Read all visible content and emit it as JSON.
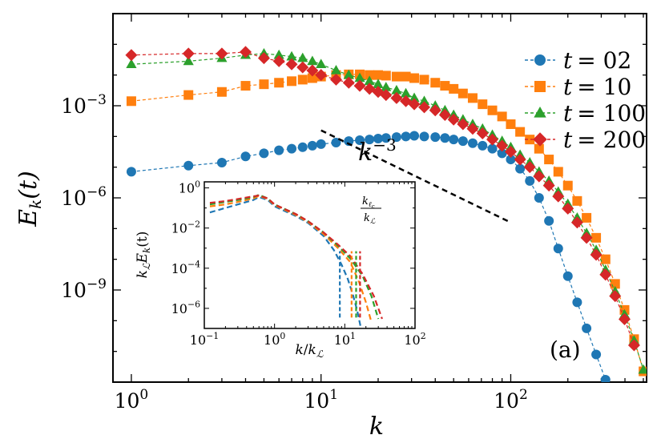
{
  "chart_data": {
    "type": "line",
    "title": "",
    "xlabel": "k",
    "ylabel": "E_k(t)",
    "xscale": "log",
    "yscale": "log",
    "xlim": [
      0.8,
      520
    ],
    "ylim": [
      1e-12,
      1
    ],
    "x_ticks": [
      {
        "value": 1,
        "base": "10",
        "exp": "0"
      },
      {
        "value": 10,
        "base": "10",
        "exp": "1"
      },
      {
        "value": 100,
        "base": "10",
        "exp": "2"
      }
    ],
    "y_ticks": [
      {
        "value": 0.001,
        "base": "10",
        "exp": "−3"
      },
      {
        "value": 1e-06,
        "base": "10",
        "exp": "−6"
      },
      {
        "value": 1e-09,
        "base": "10",
        "exp": "−9"
      }
    ],
    "panel_label": "(a)",
    "slope_annotation": {
      "label_base": "k",
      "label_exp": "−3",
      "from": [
        10,
        0.000158
      ],
      "to": [
        100,
        1.58e-07
      ]
    },
    "legend_position": "top-right",
    "series": [
      {
        "name": "t = 02",
        "legend_prefix": "t",
        "legend_value": "= 02",
        "color": "#1f77b4",
        "marker": "circle",
        "points": [
          [
            1,
            7.1e-06
          ],
          [
            2,
            1.12e-05
          ],
          [
            3,
            1.41e-05
          ],
          [
            4,
            2.24e-05
          ],
          [
            5,
            2.82e-05
          ],
          [
            6,
            3.55e-05
          ],
          [
            7,
            3.98e-05
          ],
          [
            8,
            4.47e-05
          ],
          [
            9,
            5.01e-05
          ],
          [
            10,
            5.62e-05
          ],
          [
            12,
            6.31e-05
          ],
          [
            14,
            7.08e-05
          ],
          [
            16,
            7.58e-05
          ],
          [
            18,
            7.94e-05
          ],
          [
            20,
            8.51e-05
          ],
          [
            22,
            8.91e-05
          ],
          [
            25,
            9.55e-05
          ],
          [
            28,
            0.0001
          ],
          [
            31,
            0.000105
          ],
          [
            35,
            0.0001
          ],
          [
            40,
            9.55e-05
          ],
          [
            45,
            8.91e-05
          ],
          [
            50,
            7.94e-05
          ],
          [
            56,
            7.08e-05
          ],
          [
            63,
            6.03e-05
          ],
          [
            71,
            5.01e-05
          ],
          [
            80,
            3.98e-05
          ],
          [
            90,
            2.82e-05
          ],
          [
            100,
            1.78e-05
          ],
          [
            112,
            8.91e-06
          ],
          [
            126,
            3.55e-06
          ],
          [
            141,
            1e-06
          ],
          [
            159,
            1.78e-07
          ],
          [
            178,
            2.24e-08
          ],
          [
            200,
            2.82e-09
          ],
          [
            224,
            3.98e-10
          ],
          [
            251,
            5.62e-11
          ],
          [
            282,
            7.94e-12
          ],
          [
            316,
            1.2e-12
          ]
        ]
      },
      {
        "name": "t = 10",
        "legend_prefix": "t",
        "legend_value": "= 10",
        "color": "#ff7f0e",
        "marker": "square",
        "points": [
          [
            1,
            0.00141
          ],
          [
            2,
            0.00224
          ],
          [
            3,
            0.00282
          ],
          [
            4,
            0.00447
          ],
          [
            5,
            0.00501
          ],
          [
            6,
            0.00562
          ],
          [
            7,
            0.00631
          ],
          [
            8,
            0.00708
          ],
          [
            9,
            0.00794
          ],
          [
            10,
            0.00891
          ],
          [
            12,
            0.01
          ],
          [
            14,
            0.0105
          ],
          [
            16,
            0.0105
          ],
          [
            18,
            0.01
          ],
          [
            20,
            0.01
          ],
          [
            22,
            0.00955
          ],
          [
            25,
            0.00891
          ],
          [
            28,
            0.00891
          ],
          [
            31,
            0.00794
          ],
          [
            35,
            0.00708
          ],
          [
            40,
            0.00562
          ],
          [
            45,
            0.00447
          ],
          [
            50,
            0.00355
          ],
          [
            56,
            0.00251
          ],
          [
            63,
            0.00178
          ],
          [
            71,
            0.00112
          ],
          [
            80,
            0.000708
          ],
          [
            90,
            0.000447
          ],
          [
            100,
            0.000251
          ],
          [
            112,
            0.000141
          ],
          [
            126,
            7.94e-05
          ],
          [
            141,
            3.98e-05
          ],
          [
            159,
            1.78e-05
          ],
          [
            178,
            7.08e-06
          ],
          [
            200,
            2.51e-06
          ],
          [
            224,
            7.94e-07
          ],
          [
            251,
            2.24e-07
          ],
          [
            282,
            5.01e-08
          ],
          [
            316,
            1e-08
          ],
          [
            355,
            1.58e-09
          ],
          [
            398,
            2.24e-10
          ],
          [
            447,
            2.51e-11
          ],
          [
            501,
            2.24e-12
          ]
        ]
      },
      {
        "name": "t = 100",
        "legend_prefix": "t",
        "legend_value": "= 100",
        "color": "#2ca02c",
        "marker": "triangle",
        "points": [
          [
            1,
            0.0224
          ],
          [
            2,
            0.0282
          ],
          [
            3,
            0.0355
          ],
          [
            4,
            0.0447
          ],
          [
            5,
            0.0501
          ],
          [
            6,
            0.0447
          ],
          [
            7,
            0.0398
          ],
          [
            8,
            0.0355
          ],
          [
            9,
            0.0282
          ],
          [
            10,
            0.0224
          ],
          [
            12,
            0.0141
          ],
          [
            14,
            0.01
          ],
          [
            16,
            0.00794
          ],
          [
            18,
            0.00631
          ],
          [
            20,
            0.00501
          ],
          [
            22,
            0.00398
          ],
          [
            25,
            0.00316
          ],
          [
            28,
            0.00251
          ],
          [
            31,
            0.00178
          ],
          [
            35,
            0.00141
          ],
          [
            40,
            0.001
          ],
          [
            45,
            0.000708
          ],
          [
            50,
            0.000501
          ],
          [
            56,
            0.000355
          ],
          [
            63,
            0.000251
          ],
          [
            71,
            0.000178
          ],
          [
            80,
            0.000112
          ],
          [
            90,
            7.08e-05
          ],
          [
            100,
            4.47e-05
          ],
          [
            112,
            2.51e-05
          ],
          [
            126,
            1.41e-05
          ],
          [
            141,
            7.08e-06
          ],
          [
            159,
            3.55e-06
          ],
          [
            178,
            1.58e-06
          ],
          [
            200,
            6.31e-07
          ],
          [
            224,
            2.24e-07
          ],
          [
            251,
            7.08e-08
          ],
          [
            282,
            2e-08
          ],
          [
            316,
            4.47e-09
          ],
          [
            355,
            8.91e-10
          ],
          [
            398,
            1.58e-10
          ],
          [
            447,
            2.24e-11
          ],
          [
            501,
            2.51e-12
          ]
        ]
      },
      {
        "name": "t = 200",
        "legend_prefix": "t",
        "legend_value": "= 200",
        "color": "#d62728",
        "marker": "diamond",
        "points": [
          [
            1,
            0.0447
          ],
          [
            2,
            0.0501
          ],
          [
            3,
            0.0501
          ],
          [
            4,
            0.0562
          ],
          [
            5,
            0.0355
          ],
          [
            6,
            0.0282
          ],
          [
            7,
            0.0224
          ],
          [
            8,
            0.0178
          ],
          [
            9,
            0.0141
          ],
          [
            10,
            0.01
          ],
          [
            12,
            0.00708
          ],
          [
            14,
            0.00562
          ],
          [
            16,
            0.00447
          ],
          [
            18,
            0.00355
          ],
          [
            20,
            0.00282
          ],
          [
            22,
            0.00224
          ],
          [
            25,
            0.00178
          ],
          [
            28,
            0.00141
          ],
          [
            31,
            0.00112
          ],
          [
            35,
            0.000891
          ],
          [
            40,
            0.000708
          ],
          [
            45,
            0.000501
          ],
          [
            50,
            0.000355
          ],
          [
            56,
            0.000251
          ],
          [
            63,
            0.000178
          ],
          [
            71,
            0.000126
          ],
          [
            80,
            7.94e-05
          ],
          [
            90,
            5.01e-05
          ],
          [
            100,
            3.16e-05
          ],
          [
            112,
            1.78e-05
          ],
          [
            126,
            1e-05
          ],
          [
            141,
            5.01e-06
          ],
          [
            159,
            2.51e-06
          ],
          [
            178,
            1.12e-06
          ],
          [
            200,
            4.47e-07
          ],
          [
            224,
            1.58e-07
          ],
          [
            251,
            5.01e-08
          ],
          [
            282,
            1.41e-08
          ],
          [
            316,
            3.16e-09
          ],
          [
            355,
            6.31e-10
          ],
          [
            398,
            1.12e-10
          ],
          [
            447,
            1.58e-11
          ]
        ]
      }
    ],
    "inset": {
      "xlabel_base": "k",
      "xlabel_denom": "k",
      "xlabel_sub": "ℒ",
      "ylabel_pre": "k",
      "ylabel_sub": "ℒ",
      "ylabel_mid": "E",
      "ylabel_sub2": "k",
      "ylabel_post": "(t)",
      "annotation_num_base": "k",
      "annotation_num_sub": "ℓ",
      "annotation_num_subsub": "c",
      "annotation_den_base": "k",
      "annotation_den_sub": "ℒ",
      "xlim": [
        0.1,
        100
      ],
      "ylim": [
        1e-07,
        2
      ],
      "x_ticks": [
        {
          "value": 0.1,
          "base": "10",
          "exp": "−1"
        },
        {
          "value": 1,
          "base": "10",
          "exp": "0"
        },
        {
          "value": 10,
          "base": "10",
          "exp": "1"
        },
        {
          "value": 100,
          "base": "10",
          "exp": "2"
        }
      ],
      "y_ticks": [
        {
          "value": 1,
          "base": "10",
          "exp": "0"
        },
        {
          "value": 0.01,
          "base": "10",
          "exp": "−2"
        },
        {
          "value": 0.0001,
          "base": "10",
          "exp": "−4"
        },
        {
          "value": 1e-06,
          "base": "10",
          "exp": "−6"
        }
      ],
      "cutoffs": [
        8.5,
        12.5,
        14.5,
        16.5
      ],
      "series": [
        {
          "name": "t = 02",
          "color": "#1f77b4",
          "points": [
            [
              0.12,
              0.06
            ],
            [
              0.2,
              0.1
            ],
            [
              0.3,
              0.15
            ],
            [
              0.5,
              0.25
            ],
            [
              0.6,
              0.35
            ],
            [
              0.8,
              0.25
            ],
            [
              1,
              0.12
            ],
            [
              2,
              0.04
            ],
            [
              3,
              0.018
            ],
            [
              5,
              0.004
            ],
            [
              7,
              0.0008
            ],
            [
              9,
              0.00015
            ],
            [
              11,
              3e-05
            ],
            [
              13,
              5e-06
            ],
            [
              15,
              8e-07
            ],
            [
              17,
              1e-07
            ]
          ]
        },
        {
          "name": "t = 10",
          "color": "#ff7f0e",
          "points": [
            [
              0.12,
              0.12
            ],
            [
              0.2,
              0.15
            ],
            [
              0.3,
              0.2
            ],
            [
              0.5,
              0.3
            ],
            [
              0.6,
              0.4
            ],
            [
              0.8,
              0.28
            ],
            [
              1,
              0.14
            ],
            [
              2,
              0.045
            ],
            [
              3,
              0.02
            ],
            [
              5,
              0.005
            ],
            [
              8,
              0.001
            ],
            [
              12,
              0.0002
            ],
            [
              16,
              2e-05
            ],
            [
              20,
              2e-06
            ],
            [
              24,
              2e-07
            ]
          ]
        },
        {
          "name": "t = 100",
          "color": "#2ca02c",
          "points": [
            [
              0.12,
              0.15
            ],
            [
              0.2,
              0.2
            ],
            [
              0.3,
              0.25
            ],
            [
              0.5,
              0.35
            ],
            [
              0.6,
              0.45
            ],
            [
              0.8,
              0.3
            ],
            [
              1,
              0.15
            ],
            [
              2,
              0.05
            ],
            [
              3,
              0.022
            ],
            [
              5,
              0.006
            ],
            [
              8,
              0.0013
            ],
            [
              12,
              0.0003
            ],
            [
              18,
              4e-05
            ],
            [
              24,
              4e-06
            ],
            [
              30,
              3e-07
            ]
          ]
        },
        {
          "name": "t = 200",
          "color": "#d62728",
          "points": [
            [
              0.12,
              0.18
            ],
            [
              0.2,
              0.22
            ],
            [
              0.3,
              0.28
            ],
            [
              0.5,
              0.38
            ],
            [
              0.6,
              0.42
            ],
            [
              0.8,
              0.3
            ],
            [
              1,
              0.15
            ],
            [
              2,
              0.05
            ],
            [
              3,
              0.022
            ],
            [
              5,
              0.006
            ],
            [
              8,
              0.0015
            ],
            [
              12,
              0.0004
            ],
            [
              18,
              5e-05
            ],
            [
              26,
              4e-06
            ],
            [
              34,
              3e-07
            ]
          ]
        }
      ]
    }
  }
}
